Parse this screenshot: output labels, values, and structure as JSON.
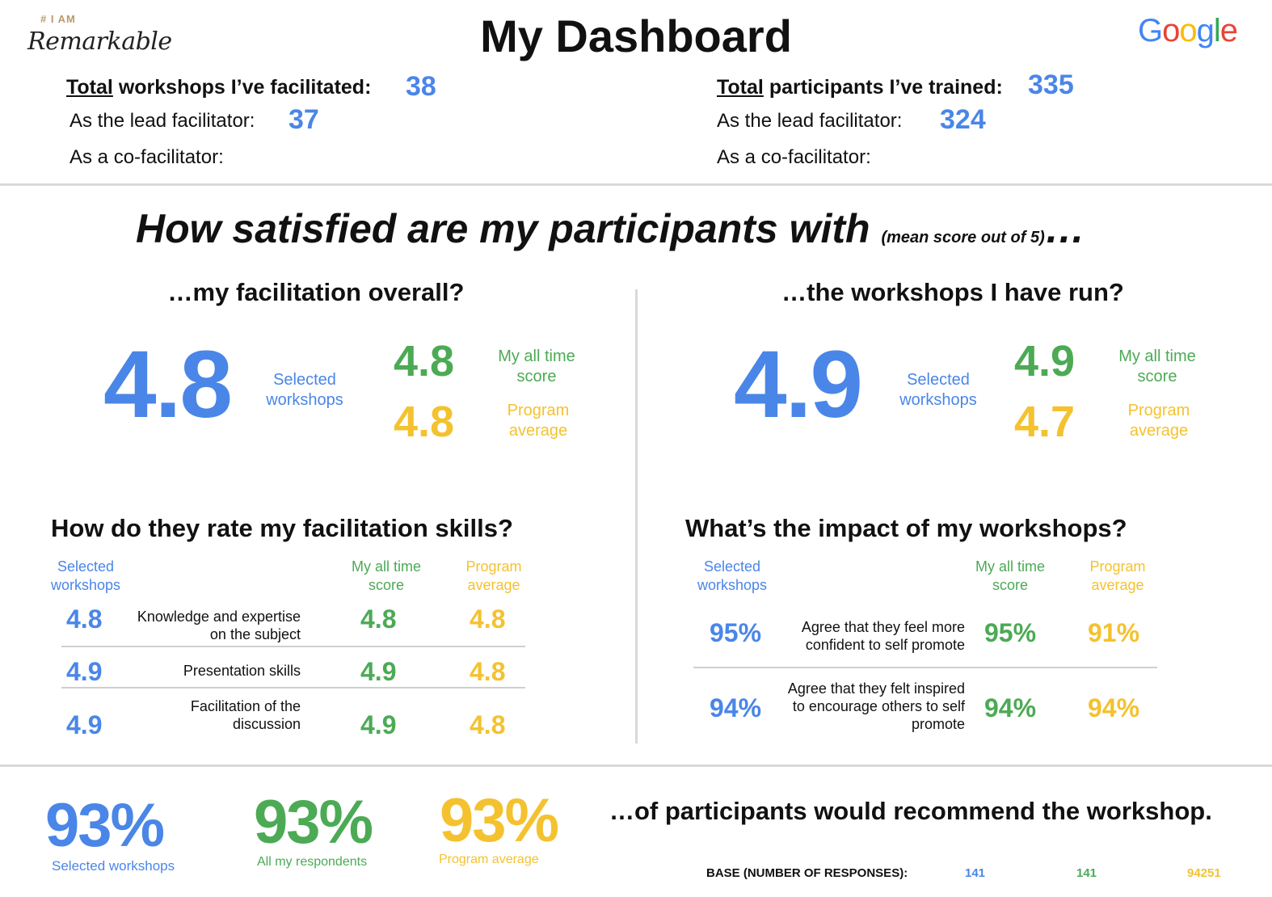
{
  "brand": {
    "tag": "# I AM",
    "script": "Remarkable"
  },
  "title": "My Dashboard",
  "google_logo": {
    "letters": [
      "G",
      "o",
      "o",
      "g",
      "l",
      "e"
    ],
    "colors": [
      "#4285F4",
      "#EA4335",
      "#FBBC05",
      "#4285F4",
      "#34A853",
      "#EA4335"
    ]
  },
  "workshops": {
    "total_underlined": "Total",
    "total_rest": " workshops I’ve facilitated:",
    "total_value": "38",
    "lead_label": "As the lead facilitator:",
    "lead_value": "37",
    "co_label": "As a co-facilitator:",
    "co_value": ""
  },
  "participants": {
    "total_underlined": "Total",
    "total_rest": " participants I’ve trained:",
    "total_value": "335",
    "lead_label": "As the lead facilitator:",
    "lead_value": "324",
    "co_label": "As a co-facilitator:",
    "co_value": ""
  },
  "satisfaction": {
    "heading": "How satisfied are my participants with ",
    "heading_small": "(mean score out of 5)",
    "heading_ellipsis": "…",
    "facilitation": {
      "question": "…my facilitation overall?",
      "selected_value": "4.8",
      "selected_label": "Selected workshops",
      "alltime_value": "4.8",
      "alltime_label": "My all time score",
      "program_value": "4.8",
      "program_label": "Program average"
    },
    "workshops": {
      "question": "…the workshops I have run?",
      "selected_value": "4.9",
      "selected_label": "Selected workshops",
      "alltime_value": "4.9",
      "alltime_label": "My all time score",
      "program_value": "4.7",
      "program_label": "Program average"
    }
  },
  "skills": {
    "heading": "How do they rate my facilitation skills?",
    "col_selected": "Selected workshops",
    "col_alltime": "My all time score",
    "col_program": "Program average",
    "rows": [
      {
        "selected": "4.8",
        "label": "Knowledge and expertise on the subject",
        "alltime": "4.8",
        "program": "4.8"
      },
      {
        "selected": "4.9",
        "label": "Presentation skills",
        "alltime": "4.9",
        "program": "4.8"
      },
      {
        "selected": "4.9",
        "label": "Facilitation of the discussion",
        "alltime": "4.9",
        "program": "4.8"
      }
    ]
  },
  "impact": {
    "heading": "What’s the impact of my workshops?",
    "col_selected": "Selected workshops",
    "col_alltime": "My all time score",
    "col_program": "Program average",
    "rows": [
      {
        "selected": "95%",
        "label": "Agree that they feel more confident to self promote",
        "alltime": "95%",
        "program": "91%"
      },
      {
        "selected": "94%",
        "label": "Agree that they felt inspired to encourage others to self promote",
        "alltime": "94%",
        "program": "94%"
      }
    ]
  },
  "recommend": {
    "selected_value": "93%",
    "selected_label": "Selected workshops",
    "all_value": "93%",
    "all_label": "All my respondents",
    "program_value": "93%",
    "program_label": "Program average",
    "text": "…of participants would recommend the workshop.",
    "base_label": "BASE (NUMBER OF RESPONSES):",
    "base_selected": "141",
    "base_all": "141",
    "base_program": "94251"
  },
  "colors": {
    "blue": "#4a86e8",
    "green": "#4caa55",
    "yellow": "#f4c22f"
  }
}
